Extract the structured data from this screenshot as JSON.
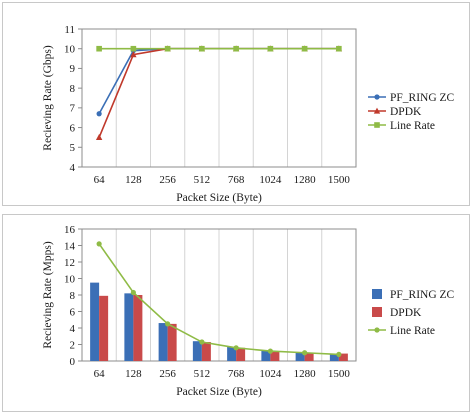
{
  "chart_data": [
    {
      "type": "line",
      "title": "",
      "xlabel": "Packet Size (Byte)",
      "ylabel": "Recieving Rate (Gbps)",
      "categories": [
        "64",
        "128",
        "256",
        "512",
        "768",
        "1024",
        "1280",
        "1500"
      ],
      "ylim": [
        4,
        11
      ],
      "yticks": [
        4,
        5,
        6,
        7,
        8,
        9,
        10,
        11
      ],
      "grid": "vertical",
      "legend": "right",
      "series": [
        {
          "name": "PF_RING ZC",
          "values": [
            6.7,
            9.9,
            10,
            10,
            10,
            10,
            10,
            10
          ],
          "color": "#3b6fb6",
          "marker": "circle"
        },
        {
          "name": "DPDK",
          "values": [
            5.5,
            9.7,
            10,
            10,
            10,
            10,
            10,
            10
          ],
          "color": "#c0392b",
          "marker": "triangle"
        },
        {
          "name": "Line Rate",
          "values": [
            10,
            10,
            10,
            10,
            10,
            10,
            10,
            10
          ],
          "color": "#8fbb46",
          "marker": "square"
        }
      ]
    },
    {
      "type": "bar",
      "title": "",
      "xlabel": "Packet Size (Byte)",
      "ylabel": "Recieving Rate (Mpps)",
      "categories": [
        "64",
        "128",
        "256",
        "512",
        "768",
        "1024",
        "1280",
        "1500"
      ],
      "ylim": [
        0,
        16
      ],
      "yticks": [
        0,
        2,
        4,
        6,
        8,
        10,
        12,
        14,
        16
      ],
      "grid": "vertical",
      "legend": "right",
      "series": [
        {
          "name": "PF_RING ZC",
          "type": "bar",
          "values": [
            9.5,
            8.2,
            4.6,
            2.4,
            1.7,
            1.3,
            1.0,
            0.9
          ],
          "color": "#3b6fb6"
        },
        {
          "name": "DPDK",
          "type": "bar",
          "values": [
            7.9,
            8.0,
            4.5,
            2.3,
            1.6,
            1.2,
            1.0,
            0.9
          ],
          "color": "#c94a4a"
        },
        {
          "name": "Line Rate",
          "type": "line",
          "values": [
            14.2,
            8.3,
            4.5,
            2.3,
            1.6,
            1.2,
            1.0,
            0.8
          ],
          "color": "#8fbb46",
          "marker": "circle"
        }
      ]
    }
  ]
}
